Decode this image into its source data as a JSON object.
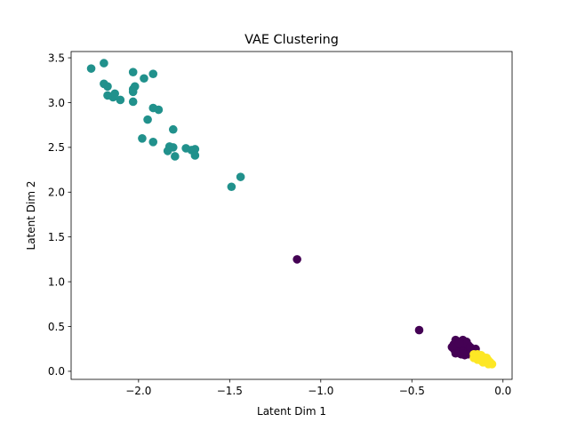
{
  "chart_data": {
    "type": "scatter",
    "title": "VAE Clustering",
    "xlabel": "Latent Dim 1",
    "ylabel": "Latent Dim 2",
    "xlim": [
      -2.37,
      0.05
    ],
    "ylim": [
      -0.09,
      3.57
    ],
    "x_ticks": [
      -2.0,
      -1.5,
      -1.0,
      -0.5,
      0.0
    ],
    "x_tick_labels": [
      "−2.0",
      "−1.5",
      "−1.0",
      "−0.5",
      "0.0"
    ],
    "y_ticks": [
      0.0,
      0.5,
      1.0,
      1.5,
      2.0,
      2.5,
      3.0,
      3.5
    ],
    "y_tick_labels": [
      "0.0",
      "0.5",
      "1.0",
      "1.5",
      "2.0",
      "2.5",
      "3.0",
      "3.5"
    ],
    "grid": false,
    "legend": "none",
    "series": [
      {
        "color": "#440154",
        "points": [
          [
            -1.13,
            1.25
          ],
          [
            -0.46,
            0.46
          ],
          [
            -0.26,
            0.35
          ],
          [
            -0.24,
            0.33
          ],
          [
            -0.22,
            0.35
          ],
          [
            -0.2,
            0.33
          ],
          [
            -0.22,
            0.3
          ],
          [
            -0.27,
            0.3
          ],
          [
            -0.25,
            0.28
          ],
          [
            -0.23,
            0.27
          ],
          [
            -0.21,
            0.28
          ],
          [
            -0.19,
            0.29
          ],
          [
            -0.27,
            0.25
          ],
          [
            -0.25,
            0.24
          ],
          [
            -0.23,
            0.25
          ],
          [
            -0.21,
            0.24
          ],
          [
            -0.19,
            0.25
          ],
          [
            -0.17,
            0.24
          ],
          [
            -0.26,
            0.22
          ],
          [
            -0.24,
            0.21
          ],
          [
            -0.22,
            0.22
          ],
          [
            -0.2,
            0.21
          ],
          [
            -0.18,
            0.22
          ],
          [
            -0.16,
            0.23
          ],
          [
            -0.15,
            0.25
          ],
          [
            -0.23,
            0.19
          ],
          [
            -0.21,
            0.18
          ],
          [
            -0.19,
            0.19
          ],
          [
            -0.17,
            0.19
          ],
          [
            -0.2,
            0.31
          ],
          [
            -0.18,
            0.27
          ],
          [
            -0.16,
            0.2
          ],
          [
            -0.28,
            0.27
          ],
          [
            -0.24,
            0.31
          ],
          [
            -0.22,
            0.2
          ],
          [
            -0.26,
            0.2
          ]
        ]
      },
      {
        "color": "#21918c",
        "points": [
          [
            -2.26,
            3.38
          ],
          [
            -2.19,
            3.44
          ],
          [
            -2.19,
            3.21
          ],
          [
            -2.17,
            3.18
          ],
          [
            -2.17,
            3.08
          ],
          [
            -2.14,
            3.06
          ],
          [
            -2.13,
            3.1
          ],
          [
            -2.1,
            3.03
          ],
          [
            -2.03,
            3.34
          ],
          [
            -2.03,
            3.15
          ],
          [
            -2.02,
            3.18
          ],
          [
            -2.03,
            3.12
          ],
          [
            -2.03,
            3.01
          ],
          [
            -1.97,
            3.27
          ],
          [
            -1.92,
            3.32
          ],
          [
            -1.92,
            2.94
          ],
          [
            -1.89,
            2.92
          ],
          [
            -1.95,
            2.81
          ],
          [
            -1.98,
            2.6
          ],
          [
            -1.92,
            2.56
          ],
          [
            -1.81,
            2.7
          ],
          [
            -1.83,
            2.51
          ],
          [
            -1.81,
            2.5
          ],
          [
            -1.84,
            2.46
          ],
          [
            -1.8,
            2.4
          ],
          [
            -1.74,
            2.49
          ],
          [
            -1.71,
            2.47
          ],
          [
            -1.69,
            2.48
          ],
          [
            -1.69,
            2.41
          ],
          [
            -1.49,
            2.06
          ],
          [
            -1.44,
            2.17
          ]
        ]
      },
      {
        "color": "#fde725",
        "points": [
          [
            -0.16,
            0.19
          ],
          [
            -0.14,
            0.19
          ],
          [
            -0.12,
            0.18
          ],
          [
            -0.15,
            0.16
          ],
          [
            -0.13,
            0.15
          ],
          [
            -0.11,
            0.16
          ],
          [
            -0.09,
            0.15
          ],
          [
            -0.14,
            0.13
          ],
          [
            -0.12,
            0.12
          ],
          [
            -0.1,
            0.13
          ],
          [
            -0.08,
            0.12
          ],
          [
            -0.11,
            0.1
          ],
          [
            -0.09,
            0.1
          ],
          [
            -0.07,
            0.1
          ],
          [
            -0.06,
            0.08
          ],
          [
            -0.08,
            0.08
          ],
          [
            -0.13,
            0.17
          ],
          [
            -0.1,
            0.11
          ],
          [
            -0.16,
            0.15
          ],
          [
            -0.12,
            0.14
          ]
        ]
      }
    ]
  }
}
